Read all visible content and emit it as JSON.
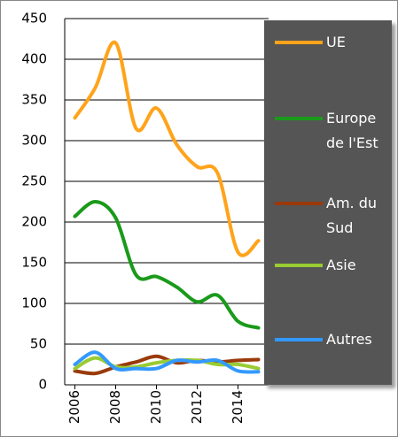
{
  "chart_data": {
    "type": "line",
    "x": [
      2006,
      2007,
      2008,
      2009,
      2010,
      2011,
      2012,
      2013,
      2014,
      2015
    ],
    "series": [
      {
        "name": "UE",
        "color": "#ffa31a",
        "values": [
          328,
          365,
          420,
          315,
          340,
          295,
          268,
          260,
          163,
          177
        ]
      },
      {
        "name": "Europe de l'Est",
        "color": "#1a9a1a",
        "values": [
          207,
          225,
          205,
          135,
          133,
          120,
          102,
          110,
          78,
          70
        ]
      },
      {
        "name": "Am. du Sud",
        "color": "#9a3a0a",
        "values": [
          17,
          14,
          22,
          28,
          35,
          27,
          30,
          28,
          30,
          31
        ]
      },
      {
        "name": "Asie",
        "color": "#99cc33",
        "values": [
          20,
          33,
          22,
          22,
          27,
          30,
          30,
          25,
          25,
          20
        ]
      },
      {
        "name": "Autres",
        "color": "#3399ff",
        "values": [
          25,
          40,
          20,
          20,
          20,
          30,
          28,
          30,
          17,
          16
        ]
      }
    ],
    "xlim": [
      2005.5,
      2015.5
    ],
    "xticks": [
      2006,
      2008,
      2010,
      2012,
      2014
    ],
    "ylim": [
      0,
      450
    ],
    "yticks": [
      0,
      50,
      100,
      150,
      200,
      250,
      300,
      350,
      400,
      450
    ],
    "grid": true,
    "legend": "right"
  }
}
